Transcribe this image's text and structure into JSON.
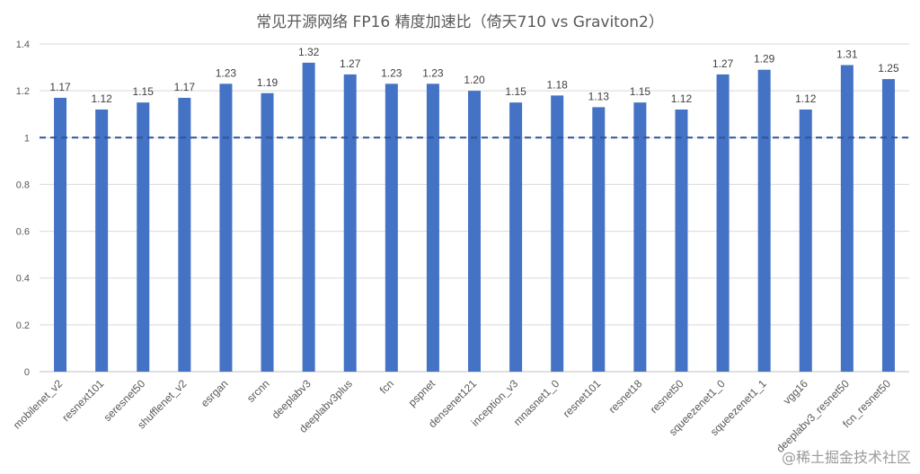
{
  "chart_data": {
    "type": "bar",
    "title": "常见开源网络 FP16 精度加速比（倚天710 vs Graviton2）",
    "categories": [
      "mobilenet_v2",
      "resnext101",
      "seresnet50",
      "shufflenet_v2",
      "esrgan",
      "srcnn",
      "deeplabv3",
      "deeplabv3plus",
      "fcn",
      "pspnet",
      "densenet121",
      "inception_v3",
      "mnasnet1_0",
      "resnet101",
      "resnet18",
      "resnet50",
      "squeezenet1_0",
      "squeezenet1_1",
      "vgg16",
      "deeplabv3_resnet50",
      "fcn_resnet50"
    ],
    "values": [
      1.17,
      1.12,
      1.15,
      1.17,
      1.23,
      1.19,
      1.32,
      1.27,
      1.23,
      1.23,
      1.2,
      1.15,
      1.18,
      1.13,
      1.15,
      1.12,
      1.27,
      1.29,
      1.12,
      1.31,
      1.25
    ],
    "data_labels": [
      "1.17",
      "1.12",
      "1.15",
      "1.17",
      "1.23",
      "1.19",
      "1.32",
      "1.27",
      "1.23",
      "1.23",
      "1.20",
      "1.15",
      "1.18",
      "1.13",
      "1.15",
      "1.12",
      "1.27",
      "1.29",
      "1.12",
      "1.31",
      "1.25"
    ],
    "y_ticks": [
      "0",
      "0.2",
      "0.4",
      "0.6",
      "0.8",
      "1",
      "1.2",
      "1.4"
    ],
    "ylim": [
      0,
      1.4
    ],
    "reference_line": 1,
    "grid": true,
    "bar_color": "#4472C4",
    "reference_line_color": "#2F5597",
    "xlabel": "",
    "ylabel": ""
  },
  "watermark": "@稀土掘金技术社区"
}
